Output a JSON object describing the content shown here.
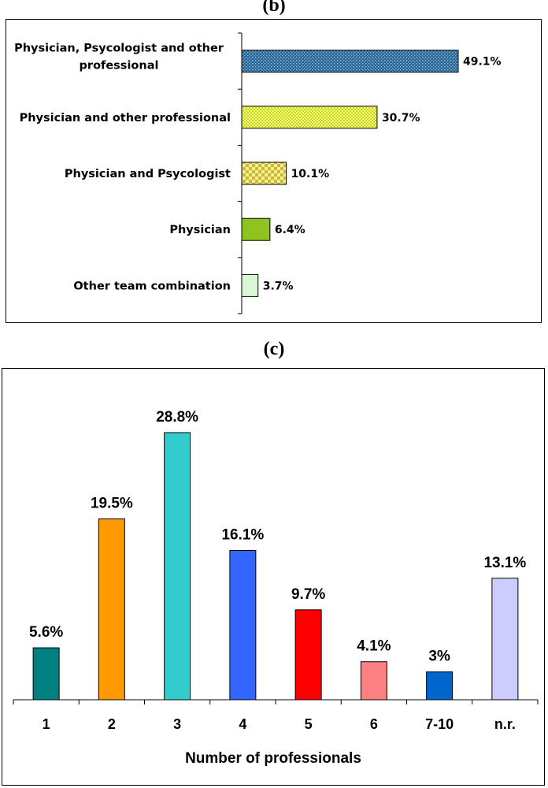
{
  "chart_data": [
    {
      "panel": "(b)",
      "type": "bar",
      "orientation": "horizontal",
      "categories": [
        [
          "Physician, Psycologist and other",
          "professional"
        ],
        [
          "Physician and other professional"
        ],
        [
          "Physician and Psycologist"
        ],
        [
          "Physician"
        ],
        [
          "Other team combination"
        ]
      ],
      "values": [
        49.1,
        30.7,
        10.1,
        6.4,
        3.7
      ],
      "value_labels": [
        "49.1%",
        "30.7%",
        "10.1%",
        "6.4%",
        "3.7%"
      ],
      "colors": [
        "#3a6fb5",
        "#ecf55a",
        "#e5e36a",
        "#8fc31f",
        "#d9f7d4"
      ],
      "xlim": [
        0,
        60
      ],
      "grid": false
    },
    {
      "panel": "(c)",
      "type": "bar",
      "orientation": "vertical",
      "categories": [
        "1",
        "2",
        "3",
        "4",
        "5",
        "6",
        "7-10",
        "n.r."
      ],
      "values": [
        5.6,
        19.5,
        28.8,
        16.1,
        9.7,
        4.1,
        3,
        13.1
      ],
      "value_labels": [
        "5.6%",
        "19.5%",
        "28.8%",
        "16.1%",
        "9.7%",
        "4.1%",
        "3%",
        "13.1%"
      ],
      "colors": [
        "#008080",
        "#ff9900",
        "#33cccc",
        "#3366ff",
        "#ff0000",
        "#ff8080",
        "#0066cc",
        "#ccccff"
      ],
      "xlabel": "Number of professionals",
      "ylim": [
        0,
        35
      ],
      "grid": false
    }
  ]
}
